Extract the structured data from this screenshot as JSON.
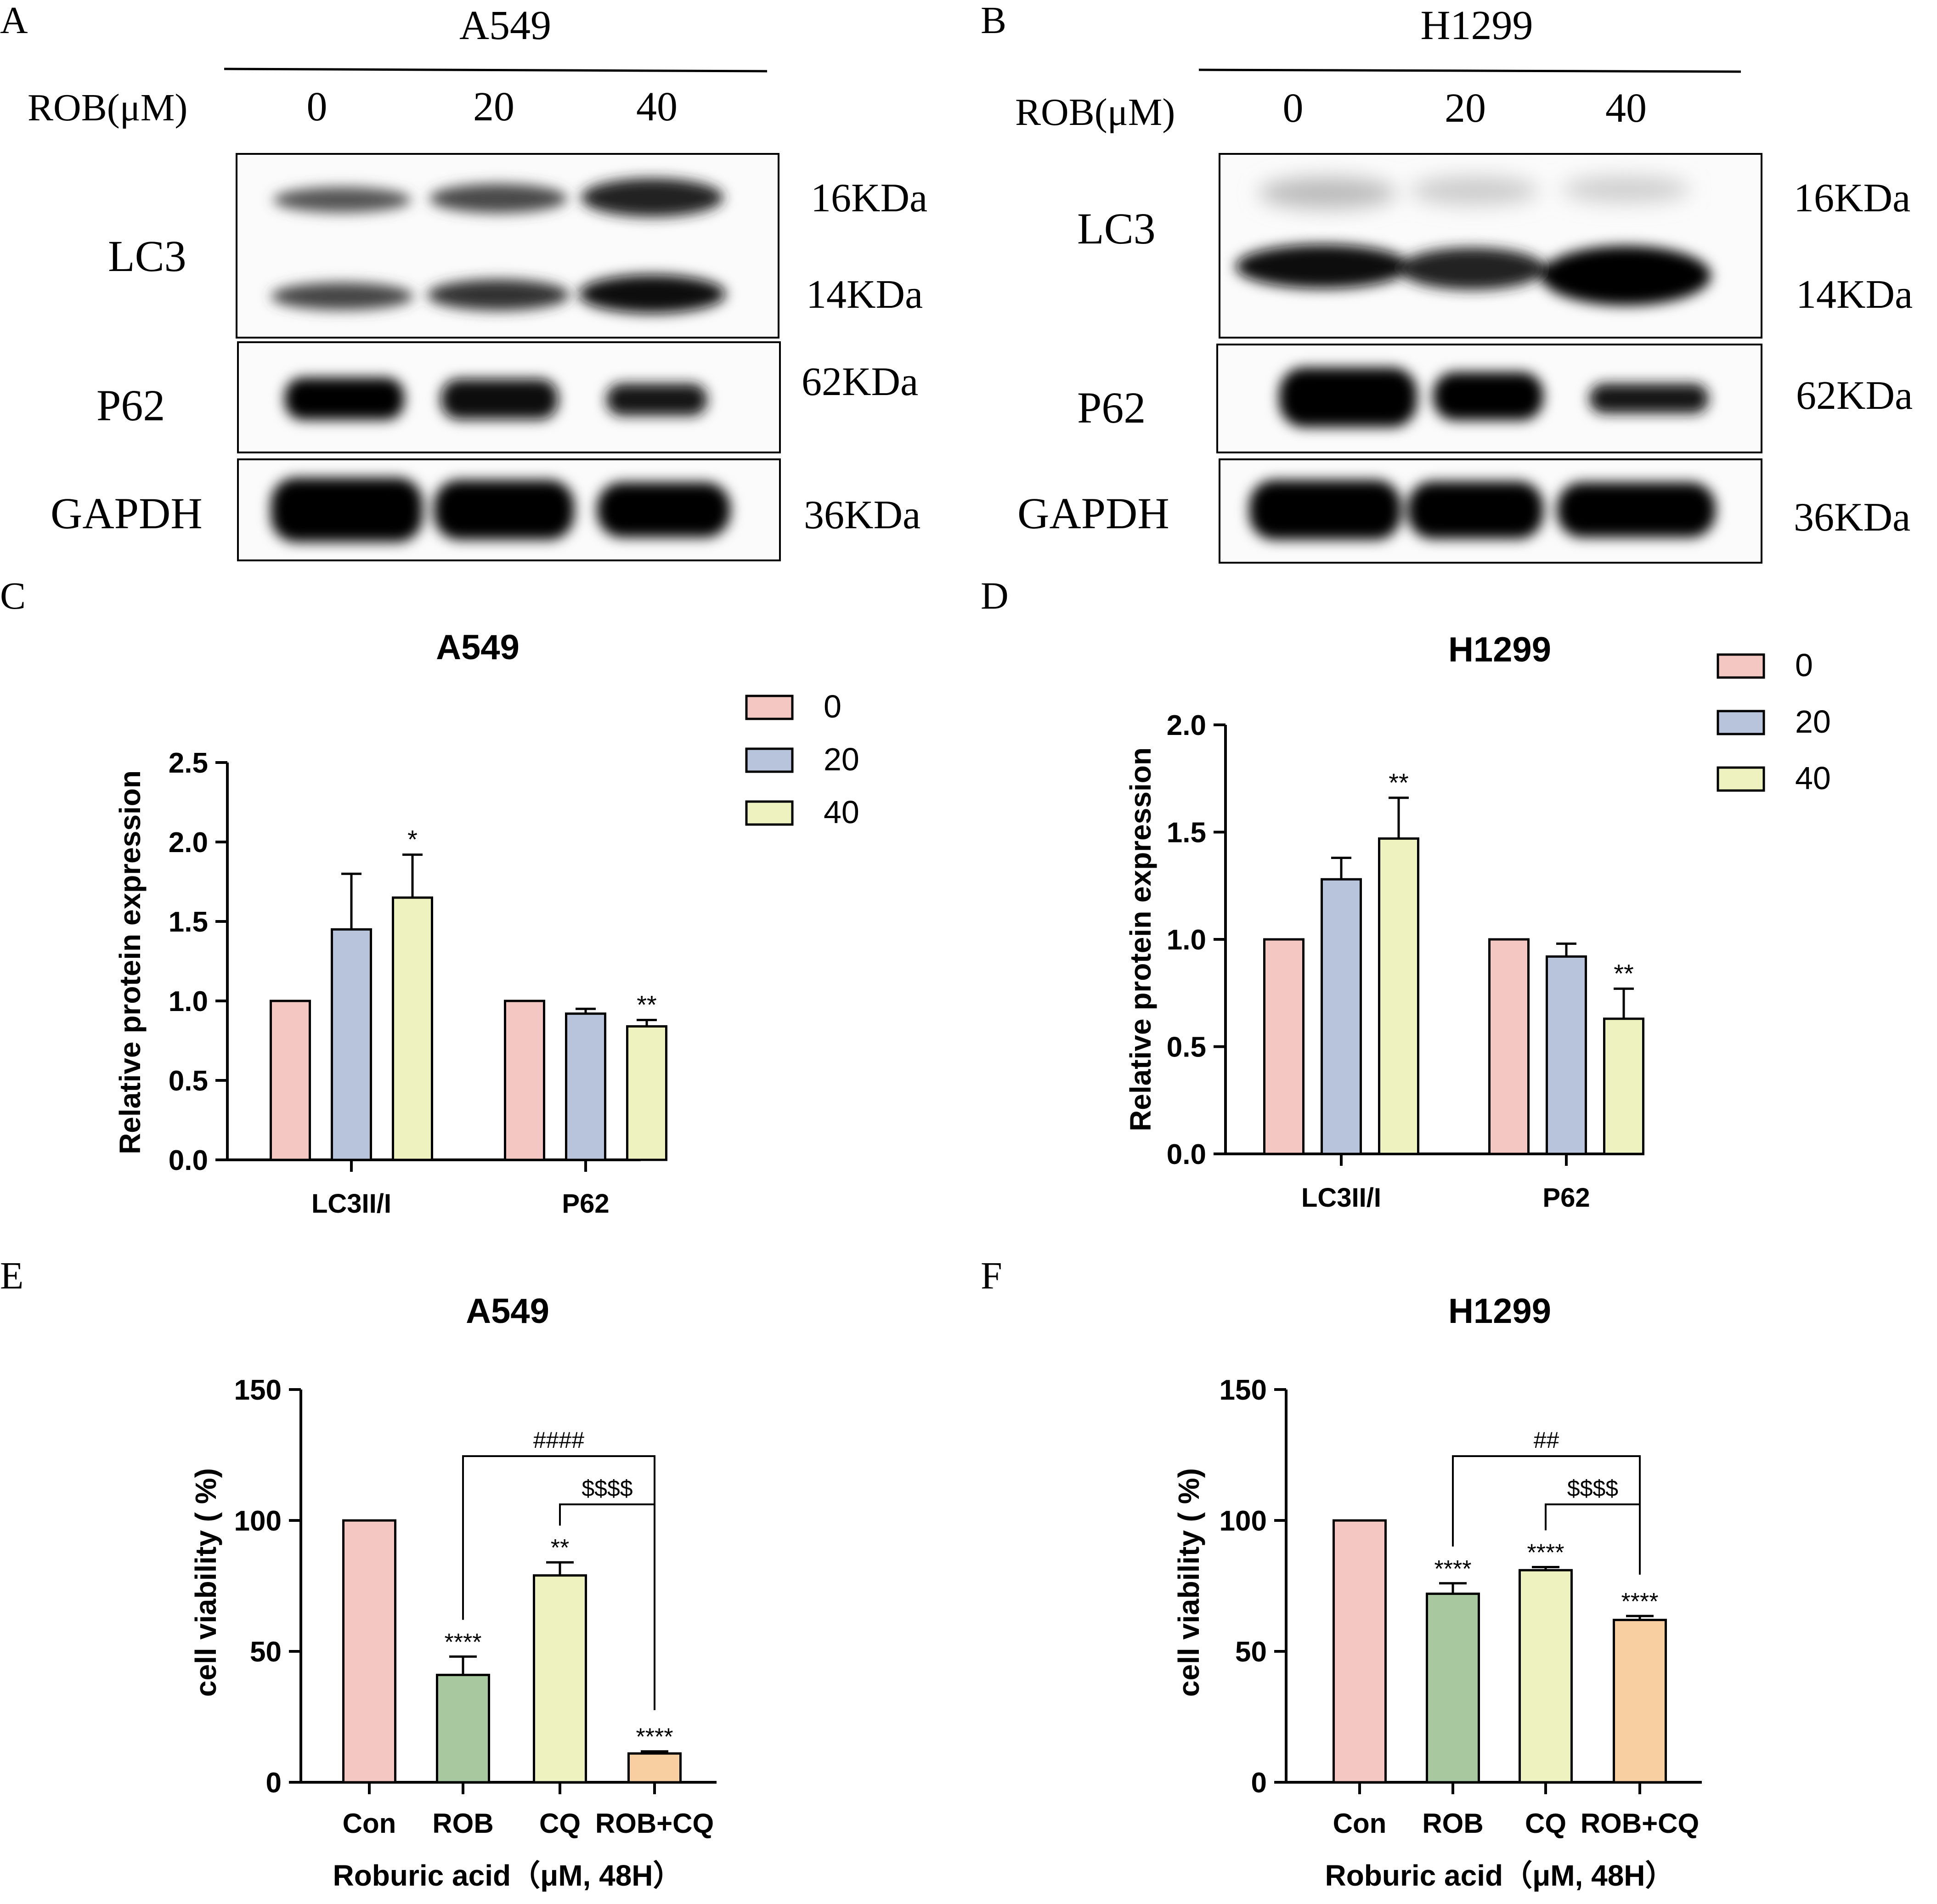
{
  "panels": {
    "A": {
      "letter": "A",
      "cell_line": "A549",
      "treatment_label": "ROB(μM)",
      "doses": [
        "0",
        "20",
        "40"
      ],
      "rows": [
        {
          "protein": "LC3",
          "weights": [
            "16KDa",
            "14KDa"
          ]
        },
        {
          "protein": "P62",
          "weights": [
            "62KDa"
          ]
        },
        {
          "protein": "GAPDH",
          "weights": [
            "36KDa"
          ]
        }
      ]
    },
    "B": {
      "letter": "B",
      "cell_line": "H1299",
      "treatment_label": "ROB(μM)",
      "doses": [
        "0",
        "20",
        "40"
      ],
      "rows": [
        {
          "protein": "LC3",
          "weights": [
            "16KDa",
            "14KDa"
          ]
        },
        {
          "protein": "P62",
          "weights": [
            "62KDa"
          ]
        },
        {
          "protein": "GAPDH",
          "weights": [
            "36KDa"
          ]
        }
      ]
    },
    "C": {
      "letter": "C"
    },
    "D": {
      "letter": "D"
    },
    "E": {
      "letter": "E"
    },
    "F": {
      "letter": "F"
    }
  },
  "colors": {
    "pink": "#f4c7c3",
    "blue": "#b8c4dc",
    "yellow": "#eef2bf",
    "green": "#a8c8a0",
    "orange": "#f8cfa0"
  },
  "chart_data": [
    {
      "panel": "C",
      "type": "bar",
      "title": "A549",
      "ylabel": "Relative protein expression",
      "xlabel": "",
      "ylim": [
        0,
        2.5
      ],
      "yticks": [
        "0.0",
        "0.5",
        "1.0",
        "1.5",
        "2.0",
        "2.5"
      ],
      "categories": [
        "LC3II/I",
        "P62"
      ],
      "legend_position": "top-right",
      "series": [
        {
          "name": "0",
          "values": [
            1.0,
            1.0
          ],
          "errors": [
            0,
            0
          ],
          "significance": [
            "",
            ""
          ]
        },
        {
          "name": "20",
          "values": [
            1.45,
            0.92
          ],
          "errors": [
            0.35,
            0.03
          ],
          "significance": [
            "",
            ""
          ]
        },
        {
          "name": "40",
          "values": [
            1.65,
            0.84
          ],
          "errors": [
            0.27,
            0.04
          ],
          "significance": [
            "*",
            "**"
          ]
        }
      ]
    },
    {
      "panel": "D",
      "type": "bar",
      "title": "H1299",
      "ylabel": "Relative protein expression",
      "xlabel": "",
      "ylim": [
        0,
        2.0
      ],
      "yticks": [
        "0.0",
        "0.5",
        "1.0",
        "1.5",
        "2.0"
      ],
      "categories": [
        "LC3II/I",
        "P62"
      ],
      "legend_position": "top-right",
      "series": [
        {
          "name": "0",
          "values": [
            1.0,
            1.0
          ],
          "errors": [
            0,
            0
          ],
          "significance": [
            "",
            ""
          ]
        },
        {
          "name": "20",
          "values": [
            1.28,
            0.92
          ],
          "errors": [
            0.1,
            0.06
          ],
          "significance": [
            "",
            ""
          ]
        },
        {
          "name": "40",
          "values": [
            1.47,
            0.63
          ],
          "errors": [
            0.19,
            0.14
          ],
          "significance": [
            "**",
            "**"
          ]
        }
      ]
    },
    {
      "panel": "E",
      "type": "bar",
      "title": "A549",
      "ylabel": "cell viability ( %)",
      "xlabel": "Roburic acid（μM, 48H）",
      "ylim": [
        0,
        150
      ],
      "yticks": [
        "0",
        "50",
        "100",
        "150"
      ],
      "categories": [
        "Con",
        "ROB",
        "CQ",
        "ROB+CQ"
      ],
      "values": [
        100,
        41,
        79,
        11
      ],
      "errors": [
        0,
        7,
        5,
        0.8
      ],
      "significance": [
        "",
        "****",
        "**",
        "****"
      ],
      "comparisons": [
        {
          "from": 1,
          "to": 3,
          "label": "####"
        },
        {
          "from": 2,
          "to": 3,
          "label": "$$$$"
        }
      ]
    },
    {
      "panel": "F",
      "type": "bar",
      "title": "H1299",
      "ylabel": "cell viability ( %)",
      "xlabel": "Roburic acid（μM, 48H）",
      "ylim": [
        0,
        150
      ],
      "yticks": [
        "0",
        "50",
        "100",
        "150"
      ],
      "categories": [
        "Con",
        "ROB",
        "CQ",
        "ROB+CQ"
      ],
      "values": [
        100,
        72,
        81,
        62
      ],
      "errors": [
        0,
        4,
        1.2,
        1.5
      ],
      "significance": [
        "",
        "****",
        "****",
        "****"
      ],
      "comparisons": [
        {
          "from": 1,
          "to": 3,
          "label": "##"
        },
        {
          "from": 2,
          "to": 3,
          "label": "$$$$"
        }
      ]
    }
  ]
}
